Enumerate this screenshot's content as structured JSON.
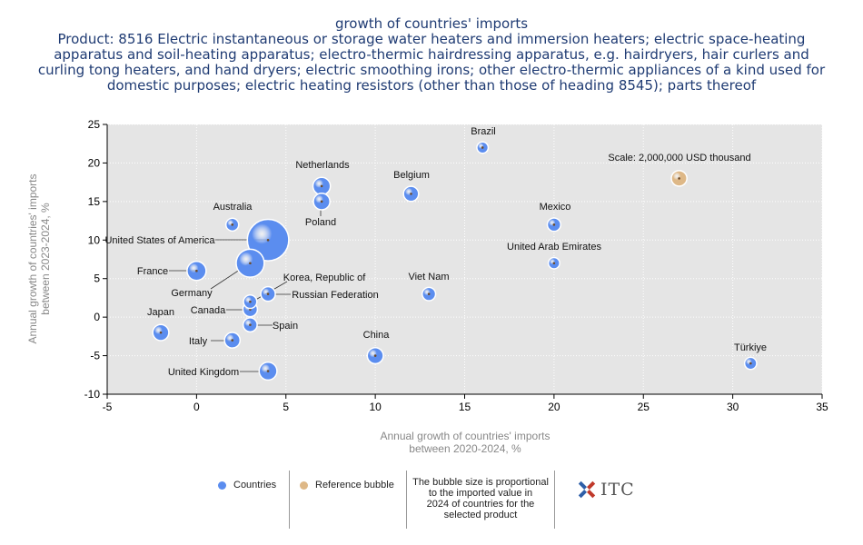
{
  "title": {
    "line1": "growth of countries' imports",
    "line2": "Product: 8516 Electric instantaneous or storage water heaters and immersion heaters; electric space-heating",
    "line3": "apparatus and soil-heating apparatus; electro-thermic hairdressing apparatus, e.g. hairdryers, hair curlers and",
    "line4": "curling tong heaters, and hand dryers; electric smoothing irons; other electro-thermic appliances of a kind used for",
    "line5": "domestic purposes; electric heating resistors (other than those of heading 8545); parts thereof"
  },
  "colors": {
    "countries": "#5b8def",
    "reference": "#deb887",
    "plot_bg": "#e5e5e5",
    "axis_label": "#888888"
  },
  "chart_data": {
    "type": "scatter",
    "xlabel_line1": "Annual growth of countries' imports",
    "xlabel_line2": "between 2020-2024, %",
    "ylabel_line1": "Annual growth of countries' imports",
    "ylabel_line2": "between 2023-2024, %",
    "xlim": [
      -5,
      35
    ],
    "ylim": [
      -10,
      25
    ],
    "xticks": [
      -5,
      0,
      5,
      10,
      15,
      20,
      25,
      30,
      35
    ],
    "yticks": [
      -10,
      -5,
      0,
      5,
      10,
      15,
      20,
      25
    ],
    "grid": true,
    "series": [
      {
        "name": "Countries",
        "points": [
          {
            "label": "United States of America",
            "x": 4,
            "y": 10,
            "size": 12
          },
          {
            "label": "Germany",
            "x": 3,
            "y": 7,
            "size": 5
          },
          {
            "label": "France",
            "x": 0,
            "y": 6,
            "size": 2
          },
          {
            "label": "Netherlands",
            "x": 7,
            "y": 17,
            "size": 1.6
          },
          {
            "label": "Poland",
            "x": 7,
            "y": 15,
            "size": 1.4
          },
          {
            "label": "Australia",
            "x": 2,
            "y": 12,
            "size": 0.7
          },
          {
            "label": "Belgium",
            "x": 12,
            "y": 16,
            "size": 1.1
          },
          {
            "label": "Brazil",
            "x": 16,
            "y": 22,
            "size": 0.5
          },
          {
            "label": "Mexico",
            "x": 20,
            "y": 12,
            "size": 0.8
          },
          {
            "label": "United Arab Emirates",
            "x": 20,
            "y": 7,
            "size": 0.5
          },
          {
            "label": "Viet Nam",
            "x": 13,
            "y": 3,
            "size": 0.8
          },
          {
            "label": "Korea, Republic of",
            "x": 3,
            "y": 2,
            "size": 0.8
          },
          {
            "label": "Russian Federation",
            "x": 4,
            "y": 3,
            "size": 1.0
          },
          {
            "label": "Canada",
            "x": 3,
            "y": 1,
            "size": 1.0
          },
          {
            "label": "Spain",
            "x": 3,
            "y": -1,
            "size": 0.9
          },
          {
            "label": "Japan",
            "x": -2,
            "y": -2,
            "size": 1.3
          },
          {
            "label": "Italy",
            "x": 2,
            "y": -3,
            "size": 1.2
          },
          {
            "label": "China",
            "x": 10,
            "y": -5,
            "size": 1.3
          },
          {
            "label": "United Kingdom",
            "x": 4,
            "y": -7,
            "size": 1.7
          },
          {
            "label": "Türkiye",
            "x": 31,
            "y": -6,
            "size": 0.6
          }
        ]
      },
      {
        "name": "Reference bubble",
        "points": [
          {
            "label": "Scale: 2,000,000 USD thousand",
            "x": 27,
            "y": 18,
            "size": 1.2
          }
        ]
      }
    ]
  },
  "legend": {
    "countries": "Countries",
    "reference": "Reference bubble",
    "note_line1": "The bubble size is proportional",
    "note_line2": "to the imported value in",
    "note_line3": "2024 of countries for the",
    "note_line4": "selected product"
  },
  "logo": {
    "text": "ITC"
  }
}
